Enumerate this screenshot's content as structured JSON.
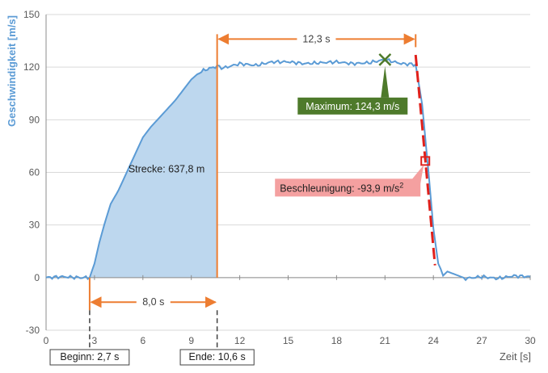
{
  "chart_data": {
    "type": "line",
    "xlabel": "Zeit [s]",
    "ylabel": "Geschwindigkeit [m/s]",
    "xlim": [
      0,
      30
    ],
    "ylim": [
      -30,
      150
    ],
    "xticks": [
      "0",
      "3",
      "6",
      "9",
      "12",
      "15",
      "18",
      "21",
      "24",
      "27",
      "30"
    ],
    "yticks": [
      "-30",
      "0",
      "30",
      "60",
      "90",
      "120",
      "150"
    ],
    "grid": "horizontal",
    "colors": {
      "series": "#5b9bd5",
      "fill": "#bdd7ee",
      "accent": "#ed7d31",
      "tangent": "#e0201b",
      "maximum_box": "#4e7a2b",
      "acceleration_box": "#f4a0a0",
      "grid": "#d9d9d9"
    },
    "series": [
      {
        "x": [
          0,
          1,
          2,
          2.7,
          3.0,
          3.3,
          3.6,
          4.0,
          4.5,
          5.0,
          5.5,
          6.0,
          6.5,
          7.0,
          7.5,
          8.0,
          8.5,
          9.0,
          9.5,
          10.0,
          10.6,
          11.0,
          12.0,
          13.0,
          14.0,
          15.0,
          16.0,
          17.0,
          18.0,
          19.0,
          20.0,
          21.0,
          22.0,
          22.9,
          23.3,
          23.7,
          24.0,
          24.3,
          24.6,
          25.0,
          26.0,
          27.0,
          28.0,
          29.0,
          30.0
        ],
        "values": [
          0,
          0.5,
          0,
          0,
          8,
          20,
          30,
          42,
          50,
          60,
          70,
          80,
          86,
          91,
          96,
          101,
          107,
          113,
          117,
          119,
          120.5,
          119.5,
          122,
          121,
          123,
          123,
          122,
          122.5,
          123,
          122,
          122.5,
          124.3,
          122,
          121.5,
          99,
          60,
          28,
          8,
          2,
          3,
          -0.5,
          0.5,
          -0.5,
          1,
          0.5
        ]
      }
    ],
    "annotations": {
      "area_label": "Strecke: 637,8 m",
      "max_label": "Maximum: 124,3 m/s",
      "max_point": [
        21.0,
        124.3
      ],
      "accel_label_prefix": "Beschleunigung: -93,9 m/s",
      "accel_label_exp": "2",
      "accel_point": [
        23.5,
        66.5
      ],
      "tangent_line": [
        [
          22.9,
          127
        ],
        [
          24.1,
          7
        ]
      ],
      "start_label": "Beginn: 2,7 s",
      "start_time": 2.7,
      "end_label": "Ende: 10,6 s",
      "end_time": 10.6,
      "duration_label": "8,0 s",
      "duration_y": -14,
      "hold_label": "12,3 s",
      "hold_start": 10.6,
      "hold_end": 22.9,
      "hold_y": 136
    }
  }
}
